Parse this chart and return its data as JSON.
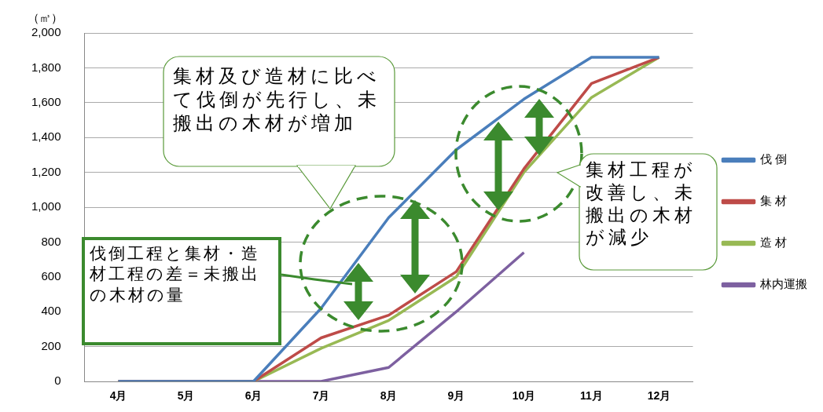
{
  "chart_data": {
    "type": "line",
    "ylabel": "（㎥）",
    "categories": [
      "4月",
      "5月",
      "6月",
      "7月",
      "8月",
      "9月",
      "10月",
      "11月",
      "12月"
    ],
    "series": [
      {
        "name": "伐 倒",
        "color": "#4a7ebb",
        "values": [
          0,
          0,
          0,
          420,
          940,
          1330,
          1620,
          1860,
          1860
        ]
      },
      {
        "name": "集 材",
        "color": "#be4b48",
        "values": [
          0,
          0,
          0,
          250,
          380,
          630,
          1220,
          1710,
          1860
        ]
      },
      {
        "name": "造 材",
        "color": "#98b954",
        "values": [
          0,
          0,
          0,
          190,
          350,
          600,
          1200,
          1630,
          1860
        ]
      },
      {
        "name": "林内運搬",
        "color": "#7d60a0",
        "values": [
          0,
          0,
          0,
          0,
          80,
          400,
          740,
          null,
          null
        ]
      }
    ],
    "ylim": [
      0,
      2000
    ],
    "yticks": [
      0,
      200,
      400,
      600,
      800,
      {
        "value": 1000,
        "label": "1,000"
      },
      {
        "value": 1200,
        "label": "1,200"
      },
      {
        "value": 1400,
        "label": "1,400"
      },
      {
        "value": 1600,
        "label": "1,600"
      },
      {
        "value": 1800,
        "label": "1,800"
      },
      {
        "value": 2000,
        "label": "2,000"
      }
    ],
    "grid": "y",
    "legend": "right",
    "marker": "none",
    "line_style": "solid",
    "annotations": [
      "集材及び造材に比べて伐倒が先行し、未搬出の木材が増加",
      "集材工程が改善し、未搬出の木材が減少",
      "伐倒工程と集材・造材工程の差＝未搬出の木材の量"
    ]
  }
}
